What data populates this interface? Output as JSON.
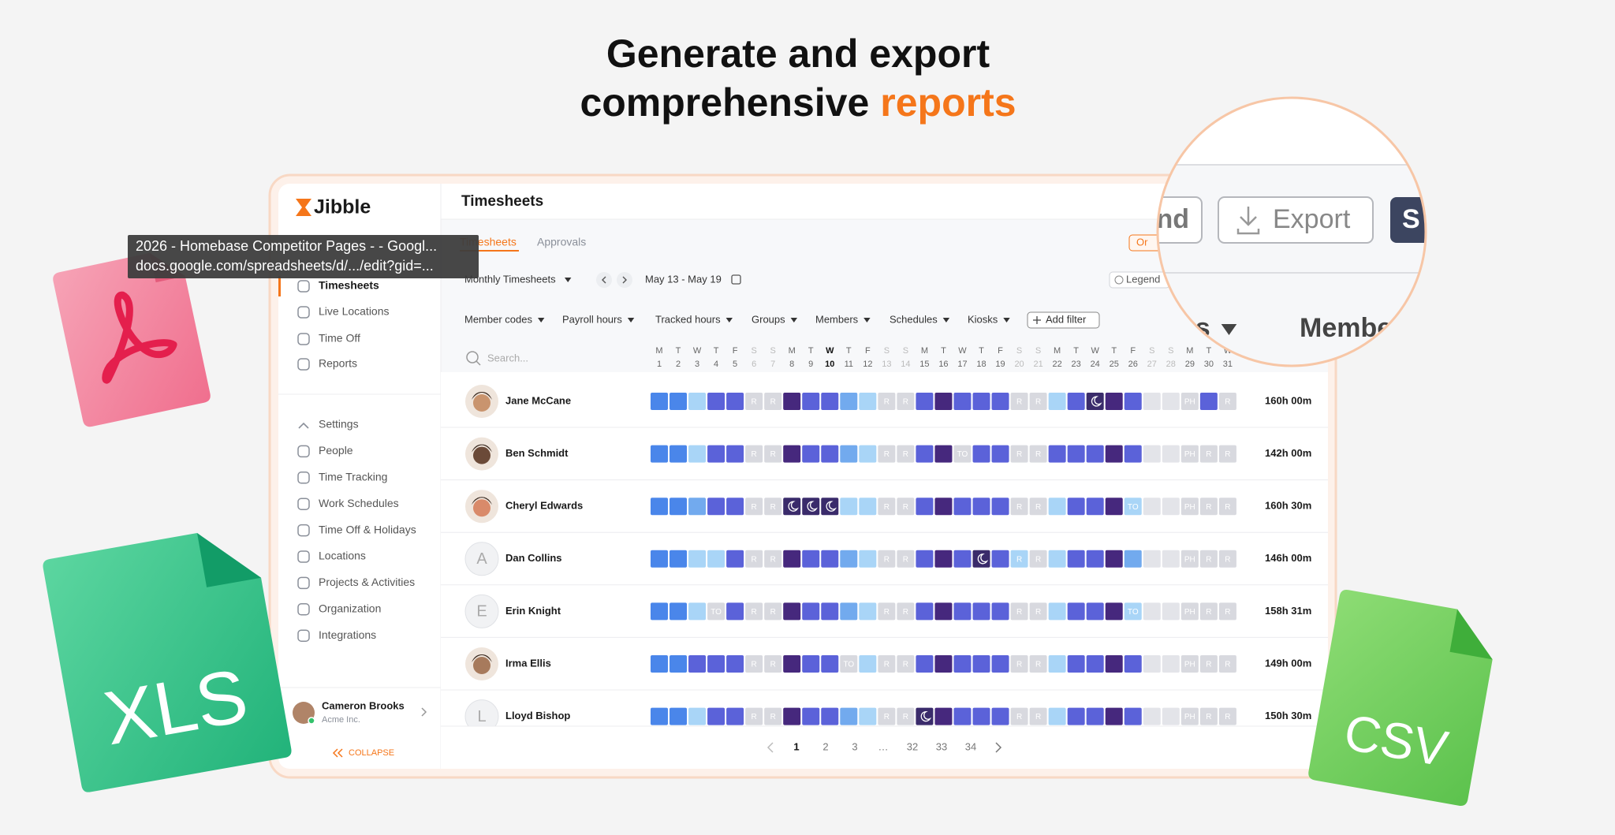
{
  "headline": {
    "line1": "Generate and export",
    "line2": "comprehensive",
    "highlight": "reports"
  },
  "tooltip": {
    "title": "2026 - Homebase Competitor Pages - - Googl...",
    "url": "docs.google.com/spreadsheets/d/.../edit?gid=..."
  },
  "app": {
    "logo": "Jibble",
    "nav_main": [
      "Timesheets",
      "Live Locations",
      "Time Off",
      "Reports"
    ],
    "nav_settings": [
      "Settings",
      "People",
      "Time Tracking",
      "Work Schedules",
      "Time Off & Holidays",
      "Locations",
      "Projects & Activities",
      "Organization",
      "Integrations"
    ],
    "user": {
      "name": "Cameron Brooks",
      "org": "Acme Inc."
    },
    "collapse": "COLLAPSE",
    "page_title": "Timesheets",
    "tabs": [
      "Timesheets",
      "Approvals"
    ],
    "org_button": "Or",
    "view": "Monthly Timesheets",
    "date_range": "May 13 - May 19",
    "legend": "Legend",
    "filters": [
      "Member codes",
      "Payroll hours",
      "Tracked hours",
      "Groups",
      "Members",
      "Schedules",
      "Kiosks"
    ],
    "add_filter": "Add filter",
    "search_placeholder": "Search...",
    "weekdays": [
      "M",
      "T",
      "W",
      "T",
      "F",
      "S",
      "S",
      "M",
      "T",
      "W",
      "T",
      "F",
      "S",
      "S",
      "M",
      "T",
      "W",
      "T",
      "F",
      "S",
      "S",
      "M",
      "T",
      "W",
      "T",
      "F",
      "S",
      "S",
      "M",
      "T",
      "W"
    ],
    "days": [
      1,
      2,
      3,
      4,
      5,
      6,
      7,
      8,
      9,
      10,
      11,
      12,
      13,
      14,
      15,
      16,
      17,
      18,
      19,
      20,
      21,
      22,
      23,
      24,
      25,
      26,
      27,
      28,
      29,
      30,
      31
    ],
    "selected_day": 10,
    "rows": [
      {
        "name": "Jane McCane",
        "avatar": null,
        "total": "160h 00m",
        "night": [
          23
        ],
        "cells": [
          null,
          null,
          null,
          null,
          null,
          "R",
          "R",
          null,
          null,
          null,
          null,
          null,
          "R",
          "R",
          null,
          null,
          null,
          null,
          null,
          "R",
          "R",
          null,
          null,
          null,
          null,
          null,
          null,
          null,
          "PH",
          null,
          "R"
        ],
        "colors": [
          "#4a86ea",
          "#4a86ea",
          "#a9d5f7",
          "#5b62d9",
          "#5b62d9",
          "#d8d9df",
          "#d8d9df",
          "#46287d",
          "#5b62d9",
          "#5b62d9",
          "#72aaee",
          "#a9d5f7",
          "#d8d9df",
          "#d8d9df",
          "#5b62d9",
          "#46287d",
          "#5b62d9",
          "#5b62d9",
          "#5b62d9",
          "#d8d9df",
          "#d8d9df",
          "#a9d5f7",
          "#5b62d9",
          "#3a2b6b",
          "#46287d",
          "#5b62d9",
          "#e3e4e9",
          "#e3e4e9",
          "#d8d9df",
          "#5b62d9",
          "#d8d9df"
        ]
      },
      {
        "name": "Ben Schmidt",
        "avatar": null,
        "total": "142h 00m",
        "night": [],
        "cells": [
          null,
          null,
          null,
          null,
          null,
          "R",
          "R",
          null,
          null,
          null,
          null,
          null,
          "R",
          "R",
          null,
          null,
          "TO",
          null,
          null,
          "R",
          "R",
          null,
          null,
          null,
          null,
          null,
          null,
          null,
          "PH",
          "R",
          "R"
        ],
        "colors": [
          "#4a86ea",
          "#4a86ea",
          "#a9d5f7",
          "#5b62d9",
          "#5b62d9",
          "#d8d9df",
          "#d8d9df",
          "#46287d",
          "#5b62d9",
          "#5b62d9",
          "#72aaee",
          "#a9d5f7",
          "#d8d9df",
          "#d8d9df",
          "#5b62d9",
          "#46287d",
          "#d8d9df",
          "#5b62d9",
          "#5b62d9",
          "#d8d9df",
          "#d8d9df",
          "#5b62d9",
          "#5b62d9",
          "#5b62d9",
          "#46287d",
          "#5b62d9",
          "#e3e4e9",
          "#e3e4e9",
          "#d8d9df",
          "#d8d9df",
          "#d8d9df"
        ]
      },
      {
        "name": "Cheryl Edwards",
        "avatar": null,
        "total": "160h 30m",
        "night": [
          7,
          8,
          9
        ],
        "cells": [
          null,
          null,
          null,
          null,
          null,
          "R",
          "R",
          null,
          null,
          null,
          null,
          null,
          "R",
          "R",
          null,
          null,
          null,
          null,
          null,
          "R",
          "R",
          null,
          null,
          null,
          null,
          "TO",
          null,
          null,
          "PH",
          "R",
          "R"
        ],
        "colors": [
          "#4a86ea",
          "#4a86ea",
          "#72aaee",
          "#5b62d9",
          "#5b62d9",
          "#d8d9df",
          "#d8d9df",
          "#3a2b6b",
          "#3a2b6b",
          "#3a2b6b",
          "#a9d5f7",
          "#a9d5f7",
          "#d8d9df",
          "#d8d9df",
          "#5b62d9",
          "#46287d",
          "#5b62d9",
          "#5b62d9",
          "#5b62d9",
          "#d8d9df",
          "#d8d9df",
          "#a9d5f7",
          "#5b62d9",
          "#5b62d9",
          "#46287d",
          "#a9d5f7",
          "#e3e4e9",
          "#e3e4e9",
          "#d8d9df",
          "#d8d9df",
          "#d8d9df"
        ]
      },
      {
        "name": "Dan Collins",
        "avatar": "A",
        "total": "146h 00m",
        "night": [
          17
        ],
        "cells": [
          null,
          null,
          null,
          null,
          null,
          "R",
          "R",
          null,
          null,
          null,
          null,
          null,
          "R",
          "R",
          null,
          null,
          null,
          null,
          null,
          "R",
          "R",
          null,
          null,
          null,
          null,
          null,
          null,
          null,
          "PH",
          "R",
          "R"
        ],
        "colors": [
          "#4a86ea",
          "#4a86ea",
          "#a9d5f7",
          "#a9d5f7",
          "#5b62d9",
          "#d8d9df",
          "#d8d9df",
          "#46287d",
          "#5b62d9",
          "#5b62d9",
          "#72aaee",
          "#a9d5f7",
          "#d8d9df",
          "#d8d9df",
          "#5b62d9",
          "#46287d",
          "#5b62d9",
          "#3a2b6b",
          "#5b62d9",
          "#a9d5f7",
          "#d8d9df",
          "#a9d5f7",
          "#5b62d9",
          "#5b62d9",
          "#46287d",
          "#72aaee",
          "#e3e4e9",
          "#e3e4e9",
          "#d8d9df",
          "#d8d9df",
          "#d8d9df"
        ]
      },
      {
        "name": "Erin Knight",
        "avatar": "E",
        "total": "158h 31m",
        "night": [],
        "cells": [
          null,
          null,
          null,
          "TO",
          null,
          "R",
          "R",
          null,
          null,
          null,
          null,
          null,
          "R",
          "R",
          null,
          null,
          null,
          null,
          null,
          "R",
          "R",
          null,
          null,
          null,
          null,
          "TO",
          null,
          null,
          "PH",
          "R",
          "R"
        ],
        "colors": [
          "#4a86ea",
          "#4a86ea",
          "#a9d5f7",
          "#d8d9df",
          "#5b62d9",
          "#d8d9df",
          "#d8d9df",
          "#46287d",
          "#5b62d9",
          "#5b62d9",
          "#72aaee",
          "#a9d5f7",
          "#d8d9df",
          "#d8d9df",
          "#5b62d9",
          "#46287d",
          "#5b62d9",
          "#5b62d9",
          "#5b62d9",
          "#d8d9df",
          "#d8d9df",
          "#a9d5f7",
          "#5b62d9",
          "#5b62d9",
          "#46287d",
          "#a9d5f7",
          "#e3e4e9",
          "#e3e4e9",
          "#d8d9df",
          "#d8d9df",
          "#d8d9df"
        ]
      },
      {
        "name": "Irma Ellis",
        "avatar": null,
        "total": "149h 00m",
        "night": [],
        "cells": [
          null,
          null,
          null,
          null,
          null,
          "R",
          "R",
          null,
          null,
          null,
          "TO",
          null,
          "R",
          "R",
          null,
          null,
          null,
          null,
          null,
          "R",
          "R",
          null,
          null,
          null,
          null,
          null,
          null,
          null,
          "PH",
          "R",
          "R"
        ],
        "colors": [
          "#4a86ea",
          "#4a86ea",
          "#5b62d9",
          "#5b62d9",
          "#5b62d9",
          "#d8d9df",
          "#d8d9df",
          "#46287d",
          "#5b62d9",
          "#5b62d9",
          "#d8d9df",
          "#a9d5f7",
          "#d8d9df",
          "#d8d9df",
          "#5b62d9",
          "#46287d",
          "#5b62d9",
          "#5b62d9",
          "#5b62d9",
          "#d8d9df",
          "#d8d9df",
          "#a9d5f7",
          "#5b62d9",
          "#5b62d9",
          "#46287d",
          "#5b62d9",
          "#e3e4e9",
          "#e3e4e9",
          "#d8d9df",
          "#d8d9df",
          "#d8d9df"
        ]
      },
      {
        "name": "Lloyd Bishop",
        "avatar": "L",
        "total": "150h 30m",
        "night": [
          14
        ],
        "cells": [
          null,
          null,
          null,
          null,
          null,
          "R",
          "R",
          null,
          null,
          null,
          null,
          null,
          "R",
          "R",
          null,
          null,
          null,
          null,
          null,
          "R",
          "R",
          null,
          null,
          null,
          null,
          null,
          null,
          null,
          "PH",
          "R",
          "R"
        ],
        "colors": [
          "#4a86ea",
          "#4a86ea",
          "#a9d5f7",
          "#5b62d9",
          "#5b62d9",
          "#d8d9df",
          "#d8d9df",
          "#46287d",
          "#5b62d9",
          "#5b62d9",
          "#72aaee",
          "#a9d5f7",
          "#d8d9df",
          "#d8d9df",
          "#3a2b6b",
          "#46287d",
          "#5b62d9",
          "#5b62d9",
          "#5b62d9",
          "#d8d9df",
          "#d8d9df",
          "#a9d5f7",
          "#5b62d9",
          "#5b62d9",
          "#46287d",
          "#5b62d9",
          "#e3e4e9",
          "#e3e4e9",
          "#d8d9df",
          "#d8d9df",
          "#d8d9df"
        ]
      }
    ],
    "pagination": [
      "1",
      "2",
      "3",
      "…",
      "32",
      "33",
      "34"
    ]
  },
  "magnifier": {
    "send": "nd",
    "export": "Export",
    "save": "S",
    "groups": "ps",
    "members": "Membe"
  },
  "file_icons": {
    "xls": "XLS",
    "csv": "CSV"
  }
}
